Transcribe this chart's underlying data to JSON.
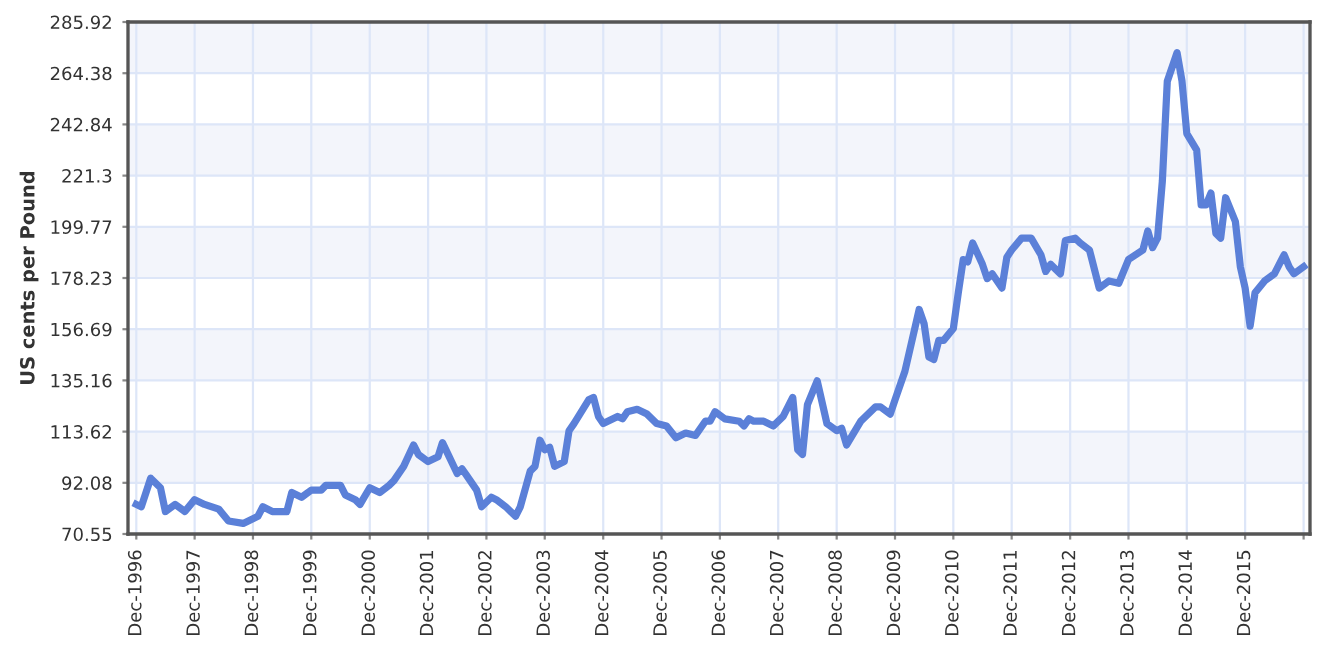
{
  "chart_data": {
    "type": "line",
    "ylabel": "US cents per Pound",
    "x": [
      "1996-12",
      "1997-01",
      "1997-03",
      "1997-05",
      "1997-06",
      "1997-08",
      "1997-10",
      "1997-12",
      "1998-02",
      "1998-05",
      "1998-07",
      "1998-10",
      "1999-01",
      "1999-02",
      "1999-04",
      "1999-07",
      "1999-08",
      "1999-10",
      "1999-12",
      "2000-02",
      "2000-03",
      "2000-06",
      "2000-07",
      "2000-09",
      "2000-10",
      "2000-12",
      "2001-02",
      "2001-04",
      "2001-05",
      "2001-07",
      "2001-09",
      "2001-10",
      "2001-12",
      "2002-02",
      "2002-03",
      "2002-06",
      "2002-07",
      "2002-08",
      "2002-10",
      "2002-11",
      "2003-01",
      "2003-02",
      "2003-04",
      "2003-06",
      "2003-07",
      "2003-09",
      "2003-10",
      "2003-11",
      "2003-12",
      "2004-01",
      "2004-02",
      "2004-04",
      "2004-05",
      "2004-06",
      "2004-09",
      "2004-10",
      "2004-11",
      "2004-12",
      "2005-03",
      "2005-04",
      "2005-05",
      "2005-07",
      "2005-09",
      "2005-11",
      "2006-01",
      "2006-03",
      "2006-05",
      "2006-07",
      "2006-09",
      "2006-10",
      "2006-11",
      "2007-01",
      "2007-04",
      "2007-05",
      "2007-06",
      "2007-07",
      "2007-09",
      "2007-11",
      "2008-01",
      "2008-03",
      "2008-04",
      "2008-05",
      "2008-06",
      "2008-08",
      "2008-10",
      "2008-12",
      "2009-01",
      "2009-02",
      "2009-05",
      "2009-08",
      "2009-09",
      "2009-11",
      "2009-12",
      "2010-02",
      "2010-05",
      "2010-06",
      "2010-07",
      "2010-08",
      "2010-09",
      "2010-10",
      "2010-12",
      "2011-01",
      "2011-02",
      "2011-03",
      "2011-04",
      "2011-06",
      "2011-07",
      "2011-08",
      "2011-10",
      "2011-11",
      "2011-12",
      "2012-02",
      "2012-04",
      "2012-06",
      "2012-07",
      "2012-08",
      "2012-10",
      "2012-11",
      "2013-01",
      "2013-02",
      "2013-04",
      "2013-06",
      "2013-08",
      "2013-10",
      "2013-12",
      "2014-03",
      "2014-04",
      "2014-05",
      "2014-06",
      "2014-07",
      "2014-08",
      "2014-10",
      "2014-11",
      "2014-12",
      "2015-02",
      "2015-03",
      "2015-04",
      "2015-05",
      "2015-06",
      "2015-07",
      "2015-08",
      "2015-10",
      "2015-11",
      "2015-12",
      "2016-01",
      "2016-02",
      "2016-04",
      "2016-06",
      "2016-08",
      "2016-09",
      "2016-10",
      "2016-12"
    ],
    "series": [
      {
        "color": "#5b80d8",
        "values": [
          83,
          82,
          94,
          90,
          80,
          83,
          80,
          85,
          83,
          81,
          76,
          75,
          78,
          82,
          80,
          80,
          88,
          86,
          89,
          89,
          91,
          91,
          87,
          85,
          83,
          90,
          88,
          91,
          93,
          99,
          108,
          104,
          101,
          103,
          109,
          96,
          98,
          95,
          89,
          82,
          86,
          85,
          82,
          78,
          82,
          97,
          99,
          110,
          106,
          107,
          99,
          101,
          114,
          117,
          127,
          128,
          120,
          117,
          120,
          119,
          122,
          123,
          121,
          117,
          116,
          111,
          113,
          112,
          118,
          118,
          122,
          119,
          118,
          116,
          119,
          118,
          118,
          116,
          120,
          128,
          106,
          104,
          125,
          135,
          117,
          114,
          115,
          108,
          118,
          124,
          124,
          121,
          127,
          139,
          165,
          159,
          145,
          144,
          152,
          152,
          157,
          172,
          186,
          185,
          193,
          184,
          178,
          180,
          174,
          187,
          190,
          195,
          195,
          188,
          181,
          184,
          180,
          194,
          195,
          193,
          190,
          174,
          177,
          176,
          186,
          190,
          198,
          191,
          195,
          219,
          261,
          273,
          261,
          239,
          232,
          209,
          209,
          214,
          197,
          195,
          212,
          202,
          183,
          174,
          158,
          172,
          177,
          180,
          188,
          183,
          180,
          183
        ]
      }
    ],
    "xlim": [
      "1996-10-10",
      "2017-01-10"
    ],
    "xticks": [
      {
        "value": "1996-12",
        "label": "Dec-1996"
      },
      {
        "value": "1997-12",
        "label": "Dec-1997"
      },
      {
        "value": "1998-12",
        "label": "Dec-1998"
      },
      {
        "value": "1999-12",
        "label": "Dec-1999"
      },
      {
        "value": "2000-12",
        "label": "Dec-2000"
      },
      {
        "value": "2001-12",
        "label": "Dec-2001"
      },
      {
        "value": "2002-12",
        "label": "Dec-2002"
      },
      {
        "value": "2003-12",
        "label": "Dec-2003"
      },
      {
        "value": "2004-12",
        "label": "Dec-2004"
      },
      {
        "value": "2005-12",
        "label": "Dec-2005"
      },
      {
        "value": "2006-12",
        "label": "Dec-2006"
      },
      {
        "value": "2007-12",
        "label": "Dec-2007"
      },
      {
        "value": "2008-12",
        "label": "Dec-2008"
      },
      {
        "value": "2009-12",
        "label": "Dec-2009"
      },
      {
        "value": "2010-12",
        "label": "Dec-2010"
      },
      {
        "value": "2011-12",
        "label": "Dec-2011"
      },
      {
        "value": "2012-12",
        "label": "Dec-2012"
      },
      {
        "value": "2013-12",
        "label": "Dec-2013"
      },
      {
        "value": "2014-12",
        "label": "Dec-2014"
      },
      {
        "value": "2015-12",
        "label": "Dec-2015"
      },
      {
        "value": "2016-12",
        "label": null
      }
    ],
    "ylim": [
      70.55,
      285.92
    ],
    "yticks": [
      70.55,
      92.08,
      113.62,
      135.16,
      156.69,
      178.23,
      199.77,
      221.3,
      242.84,
      264.38,
      285.92
    ],
    "grid": true,
    "legend": false,
    "marker": "none",
    "line_style": "solid"
  }
}
